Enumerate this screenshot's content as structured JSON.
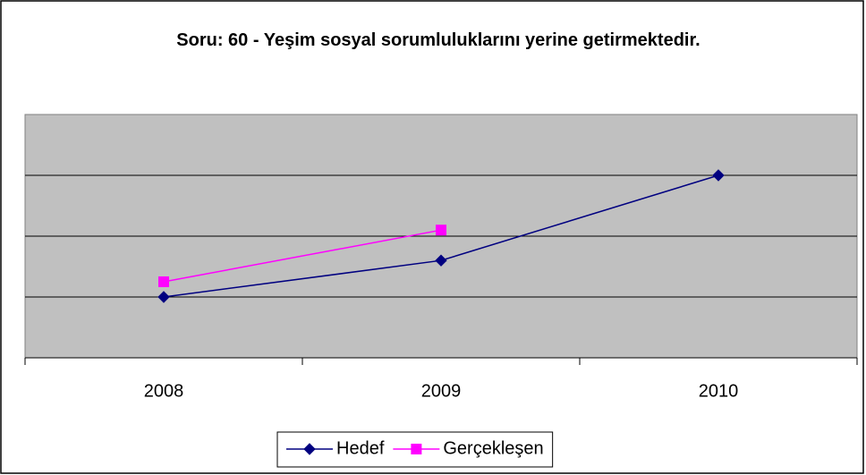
{
  "chart_data": {
    "type": "line",
    "title": "Soru: 60 - Yeşim sosyal sorumluluklarını yerine getirmektedir.",
    "categories": [
      "2008",
      "2009",
      "2010"
    ],
    "series": [
      {
        "name": "Hedef",
        "color": "#000080",
        "marker": "diamond",
        "values": [
          1,
          1.6,
          3
        ]
      },
      {
        "name": "Gerçekleşen",
        "color": "#ff00ff",
        "marker": "square",
        "values": [
          1.25,
          2.1,
          null
        ]
      }
    ],
    "ylim": [
      0,
      4
    ],
    "yticks": [
      0,
      1,
      2,
      3,
      4
    ],
    "grid": true,
    "legend": "bottom"
  }
}
